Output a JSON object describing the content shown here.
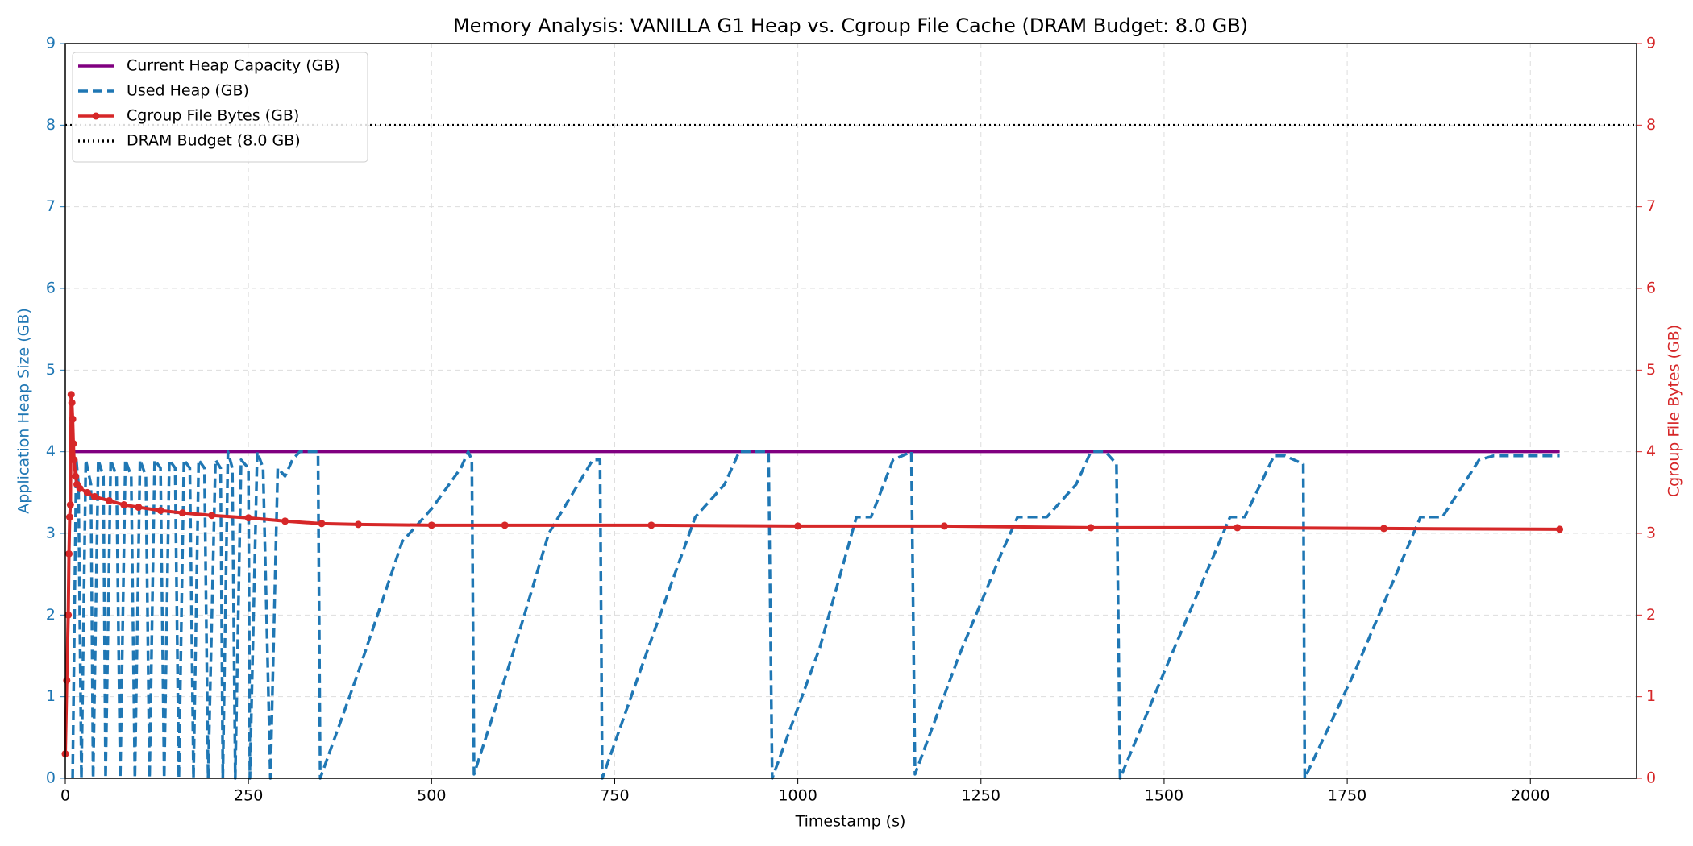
{
  "chart_data": {
    "type": "line",
    "title": "Memory Analysis: VANILLA G1 Heap vs. Cgroup File Cache (DRAM Budget: 8.0 GB)",
    "xlabel": "Timestamp (s)",
    "ylabel": "Application Heap Size (GB)",
    "y2label": "Cgroup File Bytes (GB)",
    "ylabel_color": "#1f77b4",
    "y2label_color": "#d62728",
    "xlim": [
      0,
      2145
    ],
    "xticks": [
      0,
      250,
      500,
      750,
      1000,
      1250,
      1500,
      1750,
      2000
    ],
    "ylim": [
      0,
      9
    ],
    "yticks": [
      0,
      1,
      2,
      3,
      4,
      5,
      6,
      7,
      8,
      9
    ],
    "y2lim": [
      0,
      9
    ],
    "y2ticks": [
      0,
      1,
      2,
      3,
      4,
      5,
      6,
      7,
      8,
      9
    ],
    "grid": true,
    "legend": "upper left",
    "series": [
      {
        "name": "Current Heap Capacity (GB)",
        "color": "#800080",
        "style": "solid",
        "axis": "y",
        "x": [
          10,
          2040
        ],
        "values": [
          4,
          4
        ]
      },
      {
        "name": "Used Heap (GB)",
        "color": "#1f77b4",
        "style": "dashed",
        "axis": "y",
        "x": [
          10,
          15,
          18,
          22,
          28,
          35,
          38,
          45,
          52,
          55,
          62,
          70,
          75,
          82,
          90,
          95,
          102,
          110,
          115,
          122,
          130,
          135,
          142,
          150,
          155,
          162,
          170,
          175,
          182,
          190,
          195,
          205,
          212,
          215,
          222,
          228,
          232,
          240,
          250,
          252,
          262,
          270,
          280,
          290,
          300,
          310,
          320,
          345,
          348,
          400,
          460,
          500,
          540,
          550,
          555,
          558,
          610,
          660,
          720,
          730,
          733,
          800,
          860,
          900,
          920,
          960,
          965,
          1030,
          1080,
          1100,
          1130,
          1155,
          1160,
          1220,
          1280,
          1300,
          1340,
          1380,
          1400,
          1420,
          1435,
          1440,
          1500,
          1590,
          1610,
          1650,
          1665,
          1690,
          1692,
          1760,
          1850,
          1880,
          1930,
          1950,
          1990,
          2040
        ],
        "values": [
          0,
          3.9,
          3.6,
          0,
          3.9,
          3.6,
          0,
          3.9,
          3.7,
          0,
          3.9,
          3.7,
          0,
          3.9,
          3.7,
          0,
          3.9,
          3.7,
          0,
          3.9,
          3.8,
          0,
          3.9,
          3.8,
          0,
          3.9,
          3.8,
          0,
          3.9,
          3.8,
          0,
          3.9,
          3.8,
          0,
          4.0,
          3.8,
          0,
          3.9,
          3.8,
          0,
          4.0,
          3.8,
          0,
          3.8,
          3.7,
          3.9,
          4.0,
          4.0,
          0,
          1.3,
          2.9,
          3.3,
          3.8,
          4.0,
          3.9,
          0.05,
          1.5,
          3.0,
          3.9,
          3.9,
          0,
          1.7,
          3.2,
          3.6,
          4.0,
          4.0,
          0,
          1.6,
          3.2,
          3.2,
          3.9,
          4.0,
          0.05,
          1.5,
          2.8,
          3.2,
          3.2,
          3.6,
          4.0,
          4.0,
          3.85,
          0,
          1.3,
          3.2,
          3.2,
          3.95,
          3.95,
          3.85,
          0,
          1.3,
          3.2,
          3.2,
          3.9,
          3.95,
          3.95,
          3.95
        ]
      },
      {
        "name": "Cgroup File Bytes (GB)",
        "color": "#d62728",
        "style": "solid",
        "marker": true,
        "axis": "y2",
        "x": [
          0,
          2,
          4,
          5,
          6,
          7,
          8,
          9,
          10,
          11,
          12,
          14,
          16,
          20,
          30,
          40,
          60,
          80,
          100,
          130,
          160,
          200,
          250,
          300,
          350,
          400,
          500,
          600,
          800,
          1000,
          1200,
          1400,
          1600,
          1800,
          2040
        ],
        "values": [
          0.3,
          1.2,
          2.0,
          2.75,
          3.2,
          3.35,
          4.7,
          4.6,
          4.4,
          4.1,
          3.9,
          3.7,
          3.6,
          3.55,
          3.5,
          3.45,
          3.4,
          3.35,
          3.32,
          3.28,
          3.25,
          3.22,
          3.19,
          3.15,
          3.12,
          3.11,
          3.1,
          3.1,
          3.1,
          3.09,
          3.09,
          3.07,
          3.07,
          3.06,
          3.05
        ]
      }
    ],
    "hlines": [
      {
        "name": "DRAM Budget (8.0 GB)",
        "color": "#000000",
        "style": "dotted",
        "value": 8
      }
    ]
  }
}
